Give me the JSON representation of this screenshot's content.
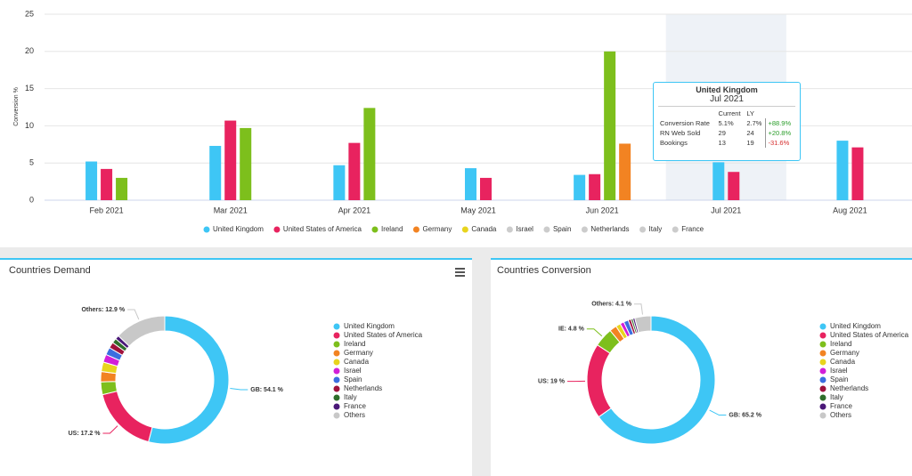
{
  "chart_data": [
    {
      "type": "bar",
      "ylabel": "Conversion %",
      "categories": [
        "Feb 2021",
        "Mar 2021",
        "Apr 2021",
        "May 2021",
        "Jun 2021",
        "Jul 2021",
        "Aug 2021"
      ],
      "ylim": [
        0,
        25
      ],
      "yticks": [
        0,
        5,
        10,
        15,
        20,
        25
      ],
      "highlight": "Jul 2021",
      "series": [
        {
          "name": "United Kingdom",
          "color": "#3ec6f5",
          "visible": true,
          "values": [
            5.2,
            7.3,
            4.7,
            4.3,
            3.4,
            5.1,
            8.0
          ]
        },
        {
          "name": "United States of America",
          "color": "#e8235f",
          "visible": true,
          "values": [
            4.2,
            10.7,
            7.7,
            3.0,
            3.5,
            3.8,
            7.1
          ]
        },
        {
          "name": "Ireland",
          "color": "#7dbf1c",
          "visible": true,
          "values": [
            3.0,
            9.7,
            12.4,
            null,
            20.0,
            null,
            null
          ]
        },
        {
          "name": "Germany",
          "color": "#f28322",
          "visible": true,
          "values": [
            null,
            null,
            null,
            null,
            7.6,
            null,
            null
          ]
        },
        {
          "name": "Canada",
          "color": "#e8d41e",
          "visible": true,
          "values": [
            null,
            null,
            null,
            null,
            null,
            null,
            null
          ]
        },
        {
          "name": "Israel",
          "color": "#cccccc",
          "visible": false,
          "values": [
            null,
            null,
            null,
            null,
            null,
            null,
            null
          ]
        },
        {
          "name": "Spain",
          "color": "#cccccc",
          "visible": false,
          "values": [
            null,
            null,
            null,
            null,
            null,
            null,
            null
          ]
        },
        {
          "name": "Netherlands",
          "color": "#cccccc",
          "visible": false,
          "values": [
            null,
            null,
            null,
            null,
            null,
            null,
            null
          ]
        },
        {
          "name": "Italy",
          "color": "#cccccc",
          "visible": false,
          "values": [
            null,
            null,
            null,
            null,
            null,
            null,
            null
          ]
        },
        {
          "name": "France",
          "color": "#cccccc",
          "visible": false,
          "values": [
            null,
            null,
            null,
            null,
            null,
            null,
            null
          ]
        }
      ]
    },
    {
      "type": "pie",
      "title": "Countries Demand",
      "donut": true,
      "categories": [
        "United Kingdom",
        "United States of America",
        "Ireland",
        "Germany",
        "Canada",
        "Israel",
        "Spain",
        "Netherlands",
        "Italy",
        "France",
        "Others"
      ],
      "values": [
        54.1,
        17.2,
        3.2,
        2.6,
        2.4,
        2.0,
        1.9,
        1.5,
        1.2,
        1.0,
        12.9
      ],
      "value_labels": [
        "GB: 54.1 %",
        "US: 17.2 %",
        null,
        null,
        null,
        null,
        null,
        null,
        null,
        null,
        "Others: 12.9 %"
      ],
      "colors": [
        "#3ec6f5",
        "#e8235f",
        "#7dbf1c",
        "#f28322",
        "#e8d41e",
        "#d21fd8",
        "#3b6ee0",
        "#a0123c",
        "#2f6e2a",
        "#4a1878",
        "#c8c8c8"
      ]
    },
    {
      "type": "pie",
      "title": "Countries Conversion",
      "donut": true,
      "categories": [
        "United Kingdom",
        "United States of America",
        "Ireland",
        "Germany",
        "Canada",
        "Israel",
        "Spain",
        "Netherlands",
        "Italy",
        "France",
        "Others"
      ],
      "values": [
        65.2,
        19,
        4.8,
        1.8,
        1.2,
        1.0,
        1.2,
        0.7,
        0.5,
        0.5,
        4.1
      ],
      "value_labels": [
        "GB: 65.2 %",
        "US: 19 %",
        "IE: 4.8 %",
        null,
        null,
        null,
        null,
        null,
        null,
        null,
        "Others: 4.1 %"
      ],
      "colors": [
        "#3ec6f5",
        "#e8235f",
        "#7dbf1c",
        "#f28322",
        "#e8d41e",
        "#d21fd8",
        "#3b6ee0",
        "#a0123c",
        "#2f6e2a",
        "#4a1878",
        "#c8c8c8"
      ]
    }
  ],
  "tooltip": {
    "title": "United Kingdom",
    "subtitle": "Jul 2021",
    "columns": [
      "Current",
      "LY"
    ],
    "rows": [
      {
        "label": "Conversion Rate",
        "current": "5.1%",
        "ly": "2.7%",
        "change": "+88.9%"
      },
      {
        "label": "RN Web Sold",
        "current": "29",
        "ly": "24",
        "change": "+20.8%"
      },
      {
        "label": "Bookings",
        "current": "13",
        "ly": "19",
        "change": "-31.6%"
      }
    ]
  }
}
